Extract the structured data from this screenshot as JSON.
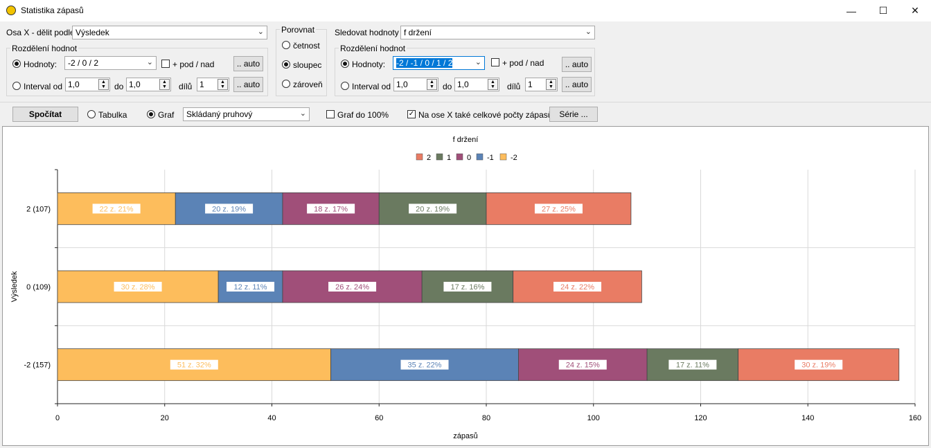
{
  "window": {
    "title": "Statistika zápasů"
  },
  "axis_x": {
    "label": "Osa X - dělit podle",
    "value": "Výsledek",
    "distribution_label": "Rozdělení hodnot",
    "values_label": "Hodnoty:",
    "values_value": "-2 /  0 / 2",
    "podnad_label": "+ pod / nad",
    "auto_label": ".. auto",
    "interval_label": "Interval od",
    "from_value": "1,0",
    "to_label": "do",
    "to_value": "1,0",
    "parts_label": "dílů",
    "parts_value": "1"
  },
  "compare": {
    "label": "Porovnat",
    "options": [
      "četnost",
      "sloupec",
      "zároveň"
    ],
    "selected": "sloupec"
  },
  "track": {
    "label": "Sledovat hodnoty",
    "value": "f držení",
    "distribution_label": "Rozdělení hodnot",
    "values_label": "Hodnoty:",
    "values_value": "-2 / -1 / 0 / 1 / 2",
    "podnad_label": "+ pod / nad",
    "auto_label": ".. auto",
    "interval_label": "Interval od",
    "from_value": "1,0",
    "to_label": "do",
    "to_value": "1,0",
    "parts_label": "dílů",
    "parts_value": "1"
  },
  "toolbar": {
    "compute_label": "Spočítat",
    "table_label": "Tabulka",
    "graph_label": "Graf",
    "graph_type": "Skládaný pruhový",
    "graph100_label": "Graf do 100%",
    "totals_label": "Na ose X také celkové počty zápasů",
    "series_label": "Série ..."
  },
  "chart_data": {
    "type": "bar",
    "orientation": "horizontal",
    "stacked": true,
    "title": "f držení",
    "xlabel": "zápasů",
    "ylabel": "Výsledek",
    "xlim": [
      0,
      160
    ],
    "xticks": [
      "0",
      "20",
      "40",
      "60",
      "80",
      "100",
      "120",
      "140",
      "160"
    ],
    "grid": true,
    "legend_position": "top",
    "categories": [
      "2 (107)",
      "0 (109)",
      "-2 (157)"
    ],
    "legend_order": [
      "2",
      "1",
      "0",
      "-1",
      "-2"
    ],
    "series": [
      {
        "name": "-2",
        "color": "#fdbd5c",
        "values": [
          22,
          30,
          51
        ],
        "labels": [
          "22 z.  21%",
          "30 z.  28%",
          "51 z.  32%"
        ]
      },
      {
        "name": "-1",
        "color": "#5b83b6",
        "values": [
          20,
          12,
          35
        ],
        "labels": [
          "20 z.  19%",
          "12 z.  11%",
          "35 z.  22%"
        ]
      },
      {
        "name": "0",
        "color": "#a04f79",
        "values": [
          18,
          26,
          24
        ],
        "labels": [
          "18 z.  17%",
          "26 z.  24%",
          "24 z.  15%"
        ]
      },
      {
        "name": "1",
        "color": "#6a7a60",
        "values": [
          20,
          17,
          17
        ],
        "labels": [
          "20 z.  19%",
          "17 z.  16%",
          "17 z.  11%"
        ]
      },
      {
        "name": "2",
        "color": "#e97c64",
        "values": [
          27,
          24,
          30
        ],
        "labels": [
          "27 z.  25%",
          "24 z.  22%",
          "30 z.  19%"
        ]
      }
    ]
  }
}
